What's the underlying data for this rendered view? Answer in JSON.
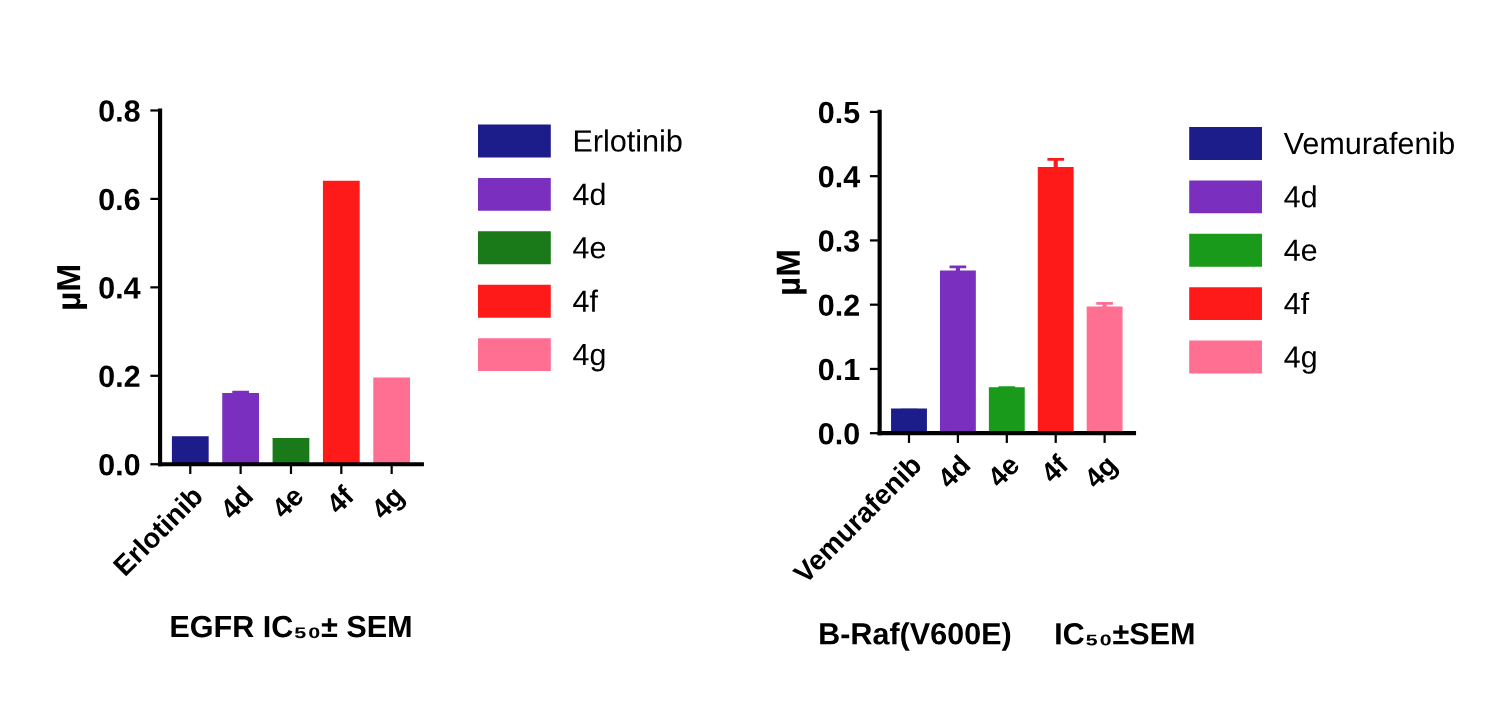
{
  "chart_data": [
    {
      "type": "bar",
      "xlabel": "EGFR IC₅₀± SEM",
      "ylabel": "µM",
      "categories": [
        "Erlotinib",
        "4d",
        "4e",
        "4f",
        "4g"
      ],
      "series": [
        {
          "name": "Erlotinib",
          "color": "#1c1c8a",
          "values": [
            0.057,
            null,
            null,
            null,
            null
          ]
        },
        {
          "name": "4d",
          "color": "#7b2fbe",
          "values": [
            null,
            0.155,
            null,
            null,
            null
          ],
          "errors": [
            null,
            0.008,
            null,
            null,
            null
          ]
        },
        {
          "name": "4e",
          "color": "#1a7a1a",
          "values": [
            null,
            null,
            0.053,
            null,
            null
          ]
        },
        {
          "name": "4f",
          "color": "#ff1a1a",
          "values": [
            null,
            null,
            null,
            0.635,
            null
          ]
        },
        {
          "name": "4g",
          "color": "#ff6f91",
          "values": [
            null,
            null,
            null,
            null,
            0.19
          ]
        }
      ],
      "ylim": [
        0,
        0.8
      ],
      "yticks": [
        {
          "value": 0,
          "label": "0.0"
        },
        0.2,
        0.4,
        0.6,
        0.8
      ],
      "grid": false,
      "legend": "right"
    },
    {
      "type": "bar",
      "xlabel": "B-Raf(V600E)     IC₅₀±SEM",
      "ylabel": "µM",
      "categories": [
        "Vemurafenib",
        "4d",
        "4e",
        "4f",
        "4g"
      ],
      "series": [
        {
          "name": "Vemurafenib",
          "color": "#1c1c8a",
          "values": [
            0.034,
            null,
            null,
            null,
            null
          ],
          "errors": [
            0.002,
            null,
            null,
            null,
            null
          ]
        },
        {
          "name": "4d",
          "color": "#7b2fbe",
          "values": [
            null,
            0.249,
            null,
            null,
            null
          ],
          "errors": [
            null,
            0.01,
            null,
            null,
            null
          ]
        },
        {
          "name": "4e",
          "color": "#1a9a1a",
          "values": [
            null,
            null,
            0.067,
            null,
            null
          ],
          "errors": [
            null,
            null,
            0.004,
            null,
            null
          ]
        },
        {
          "name": "4f",
          "color": "#ff1a1a",
          "values": [
            null,
            null,
            null,
            0.41,
            null
          ],
          "errors": [
            null,
            null,
            null,
            0.016,
            null
          ]
        },
        {
          "name": "4g",
          "color": "#ff6f91",
          "values": [
            null,
            null,
            null,
            null,
            0.193
          ],
          "errors": [
            null,
            null,
            null,
            null,
            0.009
          ]
        }
      ],
      "ylim": [
        0,
        0.5
      ],
      "yticks": [
        {
          "value": 0,
          "label": "0.0"
        },
        0.1,
        0.2,
        0.3,
        0.4,
        0.5
      ],
      "grid": false,
      "legend": "right"
    }
  ]
}
